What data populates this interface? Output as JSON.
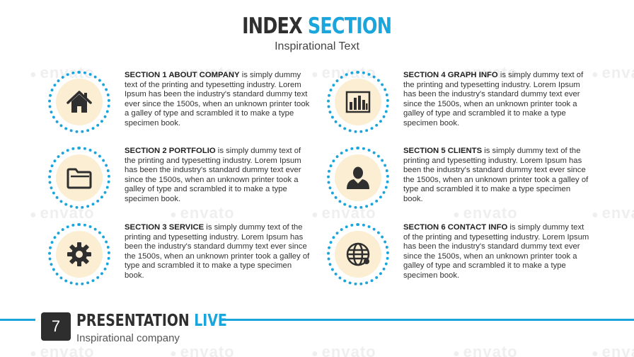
{
  "watermark": "envato",
  "header": {
    "title_dark": "INDEX",
    "title_blue": "SECTION",
    "subtitle": "Inspirational Text"
  },
  "sections": [
    {
      "heading": "SECTION 1 ABOUT COMPANY",
      "body": " is simply dummy text of the printing and typesetting industry. Lorem Ipsum has been the industry's standard dummy text ever since the 1500s, when an unknown printer took a galley of type and scrambled it to make a type specimen book.",
      "icon": "home-icon"
    },
    {
      "heading": "SECTION 2  PORTFOLIO",
      "body": " is simply dummy text of the printing and typesetting industry. Lorem Ipsum has been the industry's standard dummy text ever since the 1500s, when an unknown printer took a galley of type and scrambled it to make a type specimen book.",
      "icon": "folder-icon"
    },
    {
      "heading": "SECTION 3  SERVICE",
      "body": " is simply dummy text of the printing and typesetting industry. Lorem Ipsum has been the industry's standard dummy text ever since the 1500s, when an unknown printer took a galley of type and scrambled it to make a type specimen book.",
      "icon": "gear-icon"
    },
    {
      "heading": "SECTION 4  GRAPH INFO",
      "body": " is simply dummy text of the printing and typesetting industry. Lorem Ipsum has been the industry's standard dummy text ever since the 1500s, when an unknown printer took a galley of type and scrambled it to make a type specimen book.",
      "icon": "bar-chart-icon"
    },
    {
      "heading": "SECTION 5  CLIENTS",
      "body": " is simply dummy text of the printing and typesetting industry. Lorem Ipsum has been the industry's standard dummy text ever since the 1500s, when an unknown printer took a galley of type and scrambled it to make a type specimen book.",
      "icon": "user-icon"
    },
    {
      "heading": "SECTION 6  CONTACT INFO",
      "body": " is simply dummy text of the printing and typesetting industry. Lorem Ipsum has been the industry's standard dummy text ever since the 1500s, when an unknown printer took a galley of type and scrambled it to make a type specimen book.",
      "icon": "globe-icon"
    }
  ],
  "footer": {
    "page_number": "7",
    "title_dark": "PRESENTATION",
    "title_blue": "LIVE",
    "subtitle": "Inspirational company"
  },
  "colors": {
    "accent": "#1aa6dd",
    "dark": "#2f2f2f",
    "circle_fill": "#fbeed2"
  }
}
